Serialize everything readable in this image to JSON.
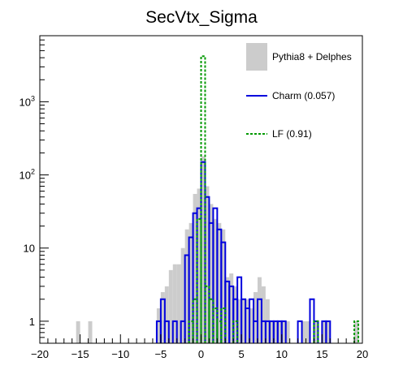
{
  "chart_data": {
    "type": "histogram",
    "title": "SecVtx_Sigma",
    "xlabel": "",
    "ylabel": "",
    "xlim": [
      -20,
      20
    ],
    "ylim": [
      0.5,
      8000
    ],
    "y_scale": "log",
    "grid": false,
    "legend_position": "top-right",
    "bin_width": 0.5,
    "x_ticks": [
      -20,
      -15,
      -10,
      -5,
      0,
      5,
      10,
      15,
      20
    ],
    "x_tick_labels": [
      "−20",
      "−15",
      "−10",
      "−5",
      "0",
      "5",
      "10",
      "15",
      "20"
    ],
    "y_ticks": [
      1,
      10,
      100,
      1000
    ],
    "y_tick_labels": [
      "1",
      "10",
      "10^2",
      "10^3"
    ],
    "series": [
      {
        "name": "Pythia8 + Delphes",
        "style": "filled",
        "color": "#cccccc",
        "points": [
          [
            -15.5,
            1
          ],
          [
            -14,
            1
          ],
          [
            -5.5,
            1.5
          ],
          [
            -5,
            2.5
          ],
          [
            -4.5,
            3
          ],
          [
            -4,
            5
          ],
          [
            -3.5,
            6
          ],
          [
            -3,
            6
          ],
          [
            -2.5,
            10
          ],
          [
            -2,
            18
          ],
          [
            -1.5,
            22
          ],
          [
            -1,
            55
          ],
          [
            -0.5,
            65
          ],
          [
            0,
            180
          ],
          [
            0.5,
            70
          ],
          [
            1,
            40
          ],
          [
            1.5,
            25
          ],
          [
            2,
            22
          ],
          [
            2.5,
            18
          ],
          [
            3,
            4
          ],
          [
            3.5,
            4.5
          ],
          [
            4,
            3
          ],
          [
            4.5,
            2
          ],
          [
            5,
            2
          ],
          [
            5.5,
            2
          ],
          [
            6,
            1.5
          ],
          [
            6.5,
            2.5
          ],
          [
            7,
            4
          ],
          [
            7.5,
            3
          ],
          [
            8,
            2
          ],
          [
            8.5,
            1
          ],
          [
            9,
            1
          ],
          [
            9.5,
            1
          ],
          [
            10,
            1
          ],
          [
            10.5,
            1
          ],
          [
            12.5,
            1
          ],
          [
            13,
            1
          ],
          [
            14,
            1
          ],
          [
            15,
            1
          ],
          [
            15.5,
            1
          ],
          [
            19,
            1
          ]
        ]
      },
      {
        "name": "Charm (0.057)",
        "style": "step",
        "color": "#0000dd",
        "points": [
          [
            -5.5,
            1
          ],
          [
            -5,
            2
          ],
          [
            -4.5,
            1
          ],
          [
            -3.5,
            1
          ],
          [
            -2.5,
            1
          ],
          [
            -2,
            8
          ],
          [
            -1.5,
            14
          ],
          [
            -1,
            30
          ],
          [
            -0.5,
            35
          ],
          [
            0,
            150
          ],
          [
            0.5,
            50
          ],
          [
            1,
            22
          ],
          [
            1.5,
            35
          ],
          [
            2,
            18
          ],
          [
            2.5,
            12
          ],
          [
            3,
            3.5
          ],
          [
            3.5,
            3
          ],
          [
            4,
            2
          ],
          [
            4.5,
            4
          ],
          [
            5,
            2
          ],
          [
            5.5,
            1.5
          ],
          [
            6,
            2
          ],
          [
            6.5,
            1
          ],
          [
            7,
            2
          ],
          [
            7.5,
            1
          ],
          [
            8,
            1
          ],
          [
            8.5,
            1
          ],
          [
            9,
            1
          ],
          [
            9.5,
            1
          ],
          [
            10,
            1
          ],
          [
            12,
            1
          ],
          [
            13.5,
            2
          ],
          [
            14,
            1
          ],
          [
            15,
            1
          ],
          [
            15.5,
            1
          ]
        ]
      },
      {
        "name": "LF (0.91)",
        "style": "dashed",
        "color": "#009900",
        "points": [
          [
            -1.5,
            1
          ],
          [
            -1,
            2
          ],
          [
            -0.5,
            25
          ],
          [
            0,
            4200
          ],
          [
            0.5,
            3
          ],
          [
            1,
            2
          ],
          [
            1.5,
            1.5
          ],
          [
            2,
            1
          ],
          [
            2.5,
            1.5
          ],
          [
            4,
            1
          ],
          [
            14,
            1
          ],
          [
            19,
            1
          ]
        ]
      }
    ]
  }
}
